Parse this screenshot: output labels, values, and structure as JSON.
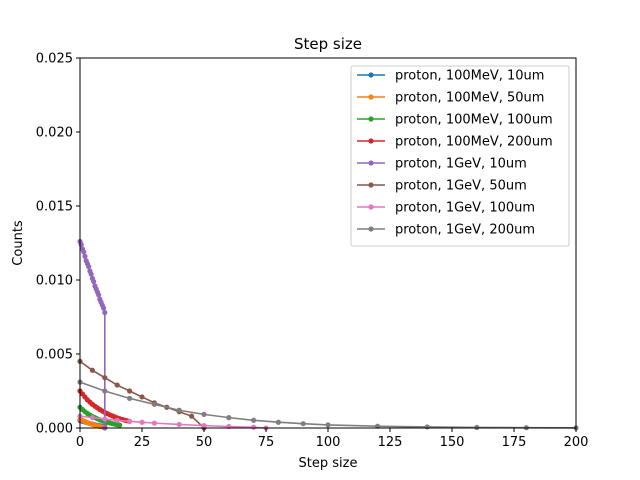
{
  "chart_data": {
    "type": "line",
    "title": "Step size",
    "xlabel": "Step size",
    "ylabel": "Counts",
    "xlim": [
      0,
      200
    ],
    "ylim": [
      0,
      0.025
    ],
    "xticks": [
      "0",
      "25",
      "50",
      "75",
      "100",
      "125",
      "150",
      "175",
      "200"
    ],
    "yticks": [
      "0.000",
      "0.005",
      "0.010",
      "0.015",
      "0.020",
      "0.025"
    ],
    "grid": false,
    "legend_position": "upper right",
    "series": [
      {
        "name": "proton, 100MeV, 10um",
        "color": "#1f77b4",
        "x": [
          0,
          1,
          2,
          3,
          4,
          5,
          6,
          7,
          8,
          9,
          10
        ],
        "y": [
          0.0005,
          0.00045,
          0.0004,
          0.00035,
          0.0003,
          0.00026,
          0.00022,
          0.00018,
          0.00015,
          0.00012,
          0.0001
        ]
      },
      {
        "name": "proton, 100MeV, 50um",
        "color": "#ff7f0e",
        "x": [
          0,
          1,
          2,
          3,
          4,
          5,
          6,
          7,
          8,
          9,
          10
        ],
        "y": [
          0.0006,
          0.00052,
          0.00044,
          0.00037,
          0.0003,
          0.00024,
          0.00019,
          0.00014,
          0.0001,
          7e-05,
          5e-05
        ]
      },
      {
        "name": "proton, 100MeV, 100um",
        "color": "#2ca02c",
        "x": [
          0,
          1,
          2,
          3,
          4,
          5,
          6,
          7,
          8,
          9,
          10,
          11,
          12,
          13,
          14,
          15,
          16
        ],
        "y": [
          0.0014,
          0.00125,
          0.0011,
          0.00098,
          0.00088,
          0.00078,
          0.0007,
          0.00062,
          0.00055,
          0.00049,
          0.00043,
          0.00038,
          0.00034,
          0.0003,
          0.00026,
          0.00023,
          0.0002
        ]
      },
      {
        "name": "proton, 100MeV, 200um",
        "color": "#d62728",
        "x": [
          0,
          1,
          2,
          3,
          4,
          5,
          6,
          7,
          8,
          9,
          10,
          11,
          12,
          13,
          14,
          15,
          16,
          17,
          18,
          19,
          20
        ],
        "y": [
          0.0025,
          0.0023,
          0.0021,
          0.0019,
          0.00175,
          0.0016,
          0.00148,
          0.00136,
          0.00125,
          0.00115,
          0.00106,
          0.00097,
          0.00089,
          0.00082,
          0.00075,
          0.00069,
          0.00063,
          0.00058,
          0.00053,
          0.00049,
          0.00045
        ]
      },
      {
        "name": "proton, 1GeV, 10um",
        "color": "#9467bd",
        "x": [
          0,
          0.5,
          1,
          1.5,
          2,
          2.5,
          3,
          3.5,
          4,
          4.5,
          5,
          5.5,
          6,
          6.5,
          7,
          7.5,
          8,
          8.5,
          9,
          9.5,
          10,
          10
        ],
        "y": [
          0.0126,
          0.0124,
          0.0121,
          0.0119,
          0.0116,
          0.0113,
          0.0111,
          0.0109,
          0.0106,
          0.0104,
          0.0101,
          0.0099,
          0.0096,
          0.0094,
          0.0092,
          0.009,
          0.0087,
          0.0085,
          0.0083,
          0.0081,
          0.0078,
          0.0
        ]
      },
      {
        "name": "proton, 1GeV, 50um",
        "color": "#8c564b",
        "x": [
          0,
          5,
          10,
          15,
          20,
          25,
          30,
          35,
          40,
          45,
          50
        ],
        "y": [
          0.0045,
          0.0039,
          0.0034,
          0.0029,
          0.0025,
          0.0021,
          0.0017,
          0.0014,
          0.0011,
          0.0008,
          0.0
        ]
      },
      {
        "name": "proton, 1GeV, 100um",
        "color": "#e377c2",
        "x": [
          0,
          5,
          10,
          15,
          20,
          25,
          30,
          40,
          50,
          60,
          70,
          75
        ],
        "y": [
          0.0008,
          0.0007,
          0.0006,
          0.00052,
          0.00045,
          0.00039,
          0.00033,
          0.00024,
          0.00016,
          0.0001,
          5e-05,
          0.0
        ]
      },
      {
        "name": "proton, 1GeV, 200um",
        "color": "#7f7f7f",
        "x": [
          0,
          10,
          20,
          30,
          40,
          50,
          60,
          70,
          80,
          90,
          100,
          120,
          140,
          160,
          180,
          200
        ],
        "y": [
          0.0031,
          0.0025,
          0.002,
          0.0016,
          0.0012,
          0.00092,
          0.0007,
          0.00052,
          0.00039,
          0.00029,
          0.00021,
          0.00012,
          7e-05,
          4e-05,
          2e-05,
          1e-05
        ]
      }
    ]
  }
}
